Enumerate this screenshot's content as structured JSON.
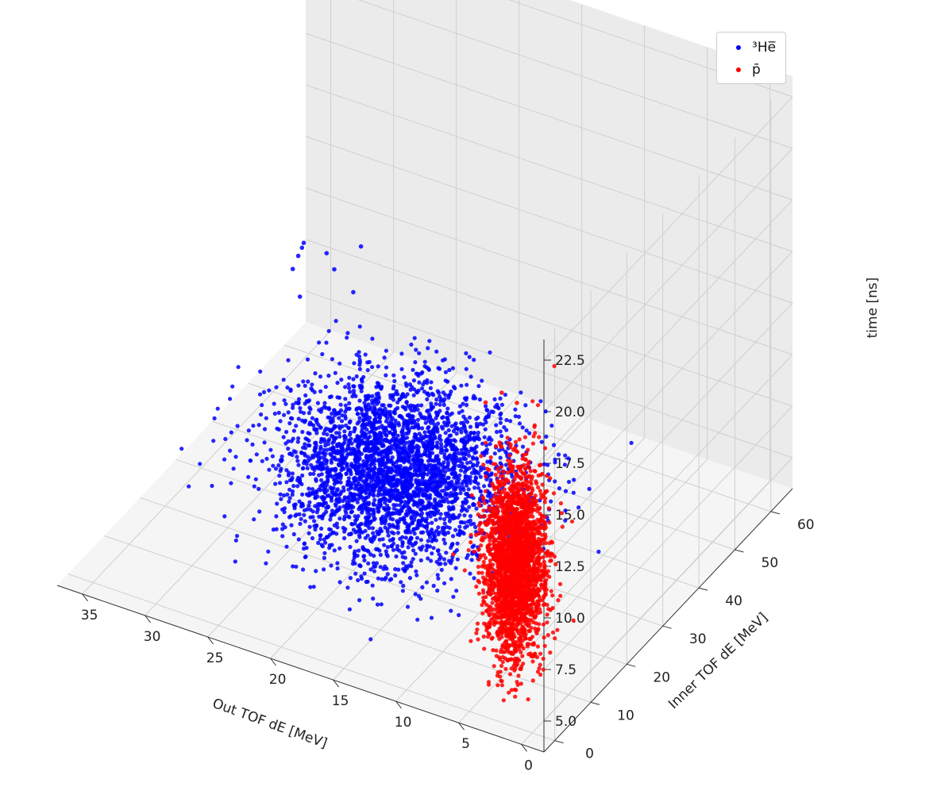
{
  "chart_data": {
    "type": "scatter",
    "projection": "3d",
    "title": "",
    "xlabel": "Out TOF dE [MeV]",
    "ylabel": "Inner TOF dE [MeV]",
    "zlabel": "time [ns]",
    "xlim": [
      -1.8,
      37
    ],
    "ylim": [
      -3,
      66
    ],
    "zlim": [
      3.5,
      23.5
    ],
    "xticks": [
      "0",
      "5",
      "10",
      "15",
      "20",
      "25",
      "30",
      "35"
    ],
    "yticks": [
      "0",
      "10",
      "20",
      "30",
      "40",
      "50",
      "60"
    ],
    "zticks": [
      "5.0",
      "7.5",
      "10.0",
      "12.5",
      "15.0",
      "17.5",
      "20.0",
      "22.5"
    ],
    "grid": true,
    "legend_position": "top-right",
    "series": [
      {
        "name": "³He̅",
        "color": "#0000ff",
        "distribution": {
          "x_mean": 16,
          "x_sd": 4.2,
          "y_mean": 18,
          "y_sd": 7.5,
          "z_mean": 9.5,
          "z_sd": 1.6
        },
        "outliers": [
          [
            30,
            40,
            11
          ],
          [
            32,
            45,
            11
          ],
          [
            33,
            50,
            10.5
          ],
          [
            34,
            55,
            10
          ],
          [
            35,
            58,
            9
          ],
          [
            33,
            60,
            8
          ],
          [
            28,
            50,
            12
          ],
          [
            20,
            20,
            17
          ],
          [
            25,
            30,
            16
          ]
        ]
      },
      {
        "name": "p̄",
        "color": "#ff0000",
        "distribution": {
          "x_mean": 2.5,
          "x_sd": 1.0,
          "y_mean": 4,
          "y_sd": 2.5,
          "z_mean": 10.5,
          "z_sd": 2.2
        },
        "outliers": [
          [
            1.5,
            1,
            19
          ],
          [
            3,
            2,
            19
          ],
          [
            4,
            1,
            18.5
          ]
        ]
      }
    ]
  }
}
